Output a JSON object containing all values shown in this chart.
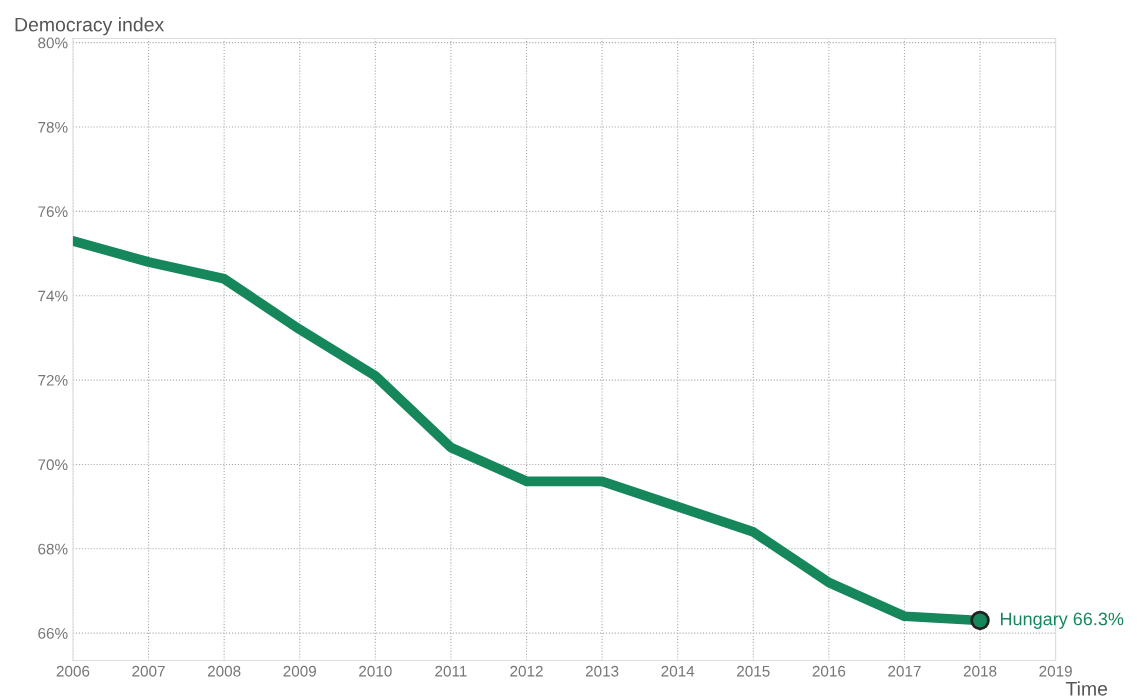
{
  "chart_data": {
    "type": "line",
    "ylabel": "Democracy index",
    "xlabel": "Time",
    "x": [
      2006,
      2007,
      2008,
      2009,
      2010,
      2011,
      2012,
      2013,
      2014,
      2015,
      2016,
      2017,
      2018
    ],
    "series": [
      {
        "color": "#16875a",
        "values": [
          75.3,
          74.8,
          74.4,
          73.2,
          72.1,
          70.4,
          69.6,
          69.6,
          69.0,
          68.4,
          67.2,
          66.4,
          66.3
        ]
      }
    ],
    "xlim": [
      2006,
      2019
    ],
    "xticks": [
      2006,
      2007,
      2008,
      2009,
      2010,
      2011,
      2012,
      2013,
      2014,
      2015,
      2016,
      2017,
      2018,
      2019
    ],
    "ylim": [
      65.35,
      80.1
    ],
    "yticks": [
      {
        "value": 66,
        "label": "66%"
      },
      {
        "value": 68,
        "label": "68%"
      },
      {
        "value": 70,
        "label": "70%"
      },
      {
        "value": 72,
        "label": "72%"
      },
      {
        "value": 74,
        "label": "74%"
      },
      {
        "value": 76,
        "label": "76%"
      },
      {
        "value": 78,
        "label": "78%"
      },
      {
        "value": 80,
        "label": "80%"
      }
    ],
    "grid": true,
    "line_style": "solid",
    "annotations": [
      {
        "text": "Hungary 66.3%",
        "x": 2018,
        "y": 66.3
      }
    ]
  }
}
